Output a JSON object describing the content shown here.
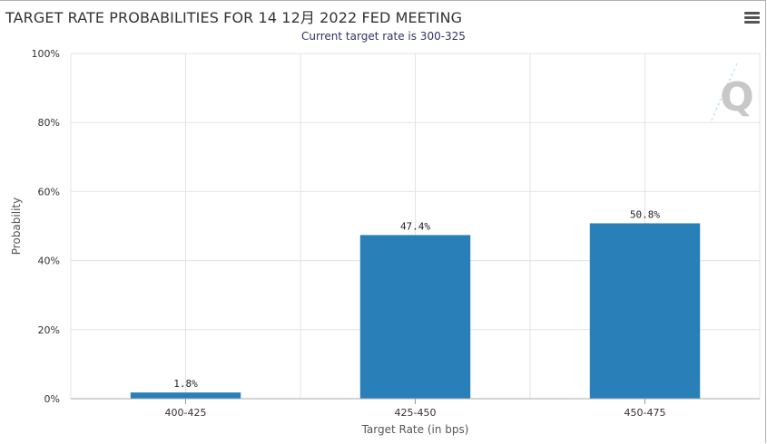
{
  "chart": {
    "menu_icon": "hamburger-menu-icon",
    "logo_icon": "q-logo-icon",
    "logo_text": "Q"
  },
  "chart_data": {
    "type": "bar",
    "title": "TARGET RATE PROBABILITIES FOR 14 12月 2022 FED MEETING",
    "subtitle": "Current target rate is 300-325",
    "categories": [
      "400-425",
      "425-450",
      "450-475"
    ],
    "values": [
      1.8,
      47.4,
      50.8
    ],
    "data_labels": [
      "1.8%",
      "47.4%",
      "50.8%"
    ],
    "xlabel": "Target Rate (in bps)",
    "ylabel": "Probability",
    "ylim": [
      0,
      100
    ],
    "yticks": [
      0,
      20,
      40,
      60,
      80,
      100
    ],
    "ytick_labels": [
      "0%",
      "20%",
      "40%",
      "60%",
      "80%",
      "100%"
    ],
    "grid": true,
    "bar_color": "#2980b9"
  }
}
